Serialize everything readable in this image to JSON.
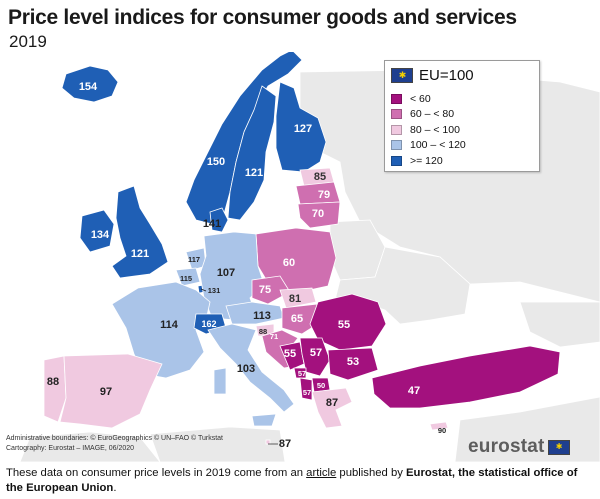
{
  "header": {
    "title": "Price level indices for consumer goods and services",
    "subtitle": "2019"
  },
  "legend": {
    "title": "EU=100",
    "classes": [
      {
        "label": "< 60",
        "color": "#a3117e"
      },
      {
        "label": "60 – < 80",
        "color": "#cf6fb0"
      },
      {
        "label": "80 – < 100",
        "color": "#f0c9e0"
      },
      {
        "label": "100 – < 120",
        "color": "#aac4e8"
      },
      {
        "label": ">= 120",
        "color": "#1f5fb5"
      }
    ]
  },
  "colors": {
    "sea": "#ffffff",
    "non_data": "#e9e9e9",
    "border": "#ffffff"
  },
  "map_values": {
    "iceland": "154",
    "norway": "150",
    "sweden": "121",
    "finland": "127",
    "denmark": "141",
    "ireland": "134",
    "uk": "121",
    "estonia": "85",
    "latvia": "79",
    "lithuania": "70",
    "poland": "60",
    "germany": "107",
    "netherlands": "117",
    "belgium": "115",
    "luxembourg": "131",
    "france": "114",
    "switzerland": "162",
    "czechia": "75",
    "slovakia": "81",
    "austria": "113",
    "hungary": "65",
    "slovenia": "88",
    "croatia": "71",
    "romania": "55",
    "bih": "55",
    "serbia": "57",
    "montenegro": "57",
    "north_macedonia": "50",
    "albania": "57",
    "bulgaria": "53",
    "italy": "103",
    "portugal": "88",
    "spain": "97",
    "greece": "87",
    "cyprus": "90",
    "malta": "87",
    "turkey": "47"
  },
  "credits": {
    "line1": "Administrative boundaries: © EuroGeographics © UN–FAO © Turkstat",
    "line2": "Cartography: Eurostat – IMAGE, 06/2020"
  },
  "brand": "eurostat",
  "caption": {
    "part1": "These data on consumer price levels in 2019 come from an ",
    "link": "article",
    "part2": " published by ",
    "bold": "Eurostat, the statistical office of the European Union",
    "part3": "."
  }
}
